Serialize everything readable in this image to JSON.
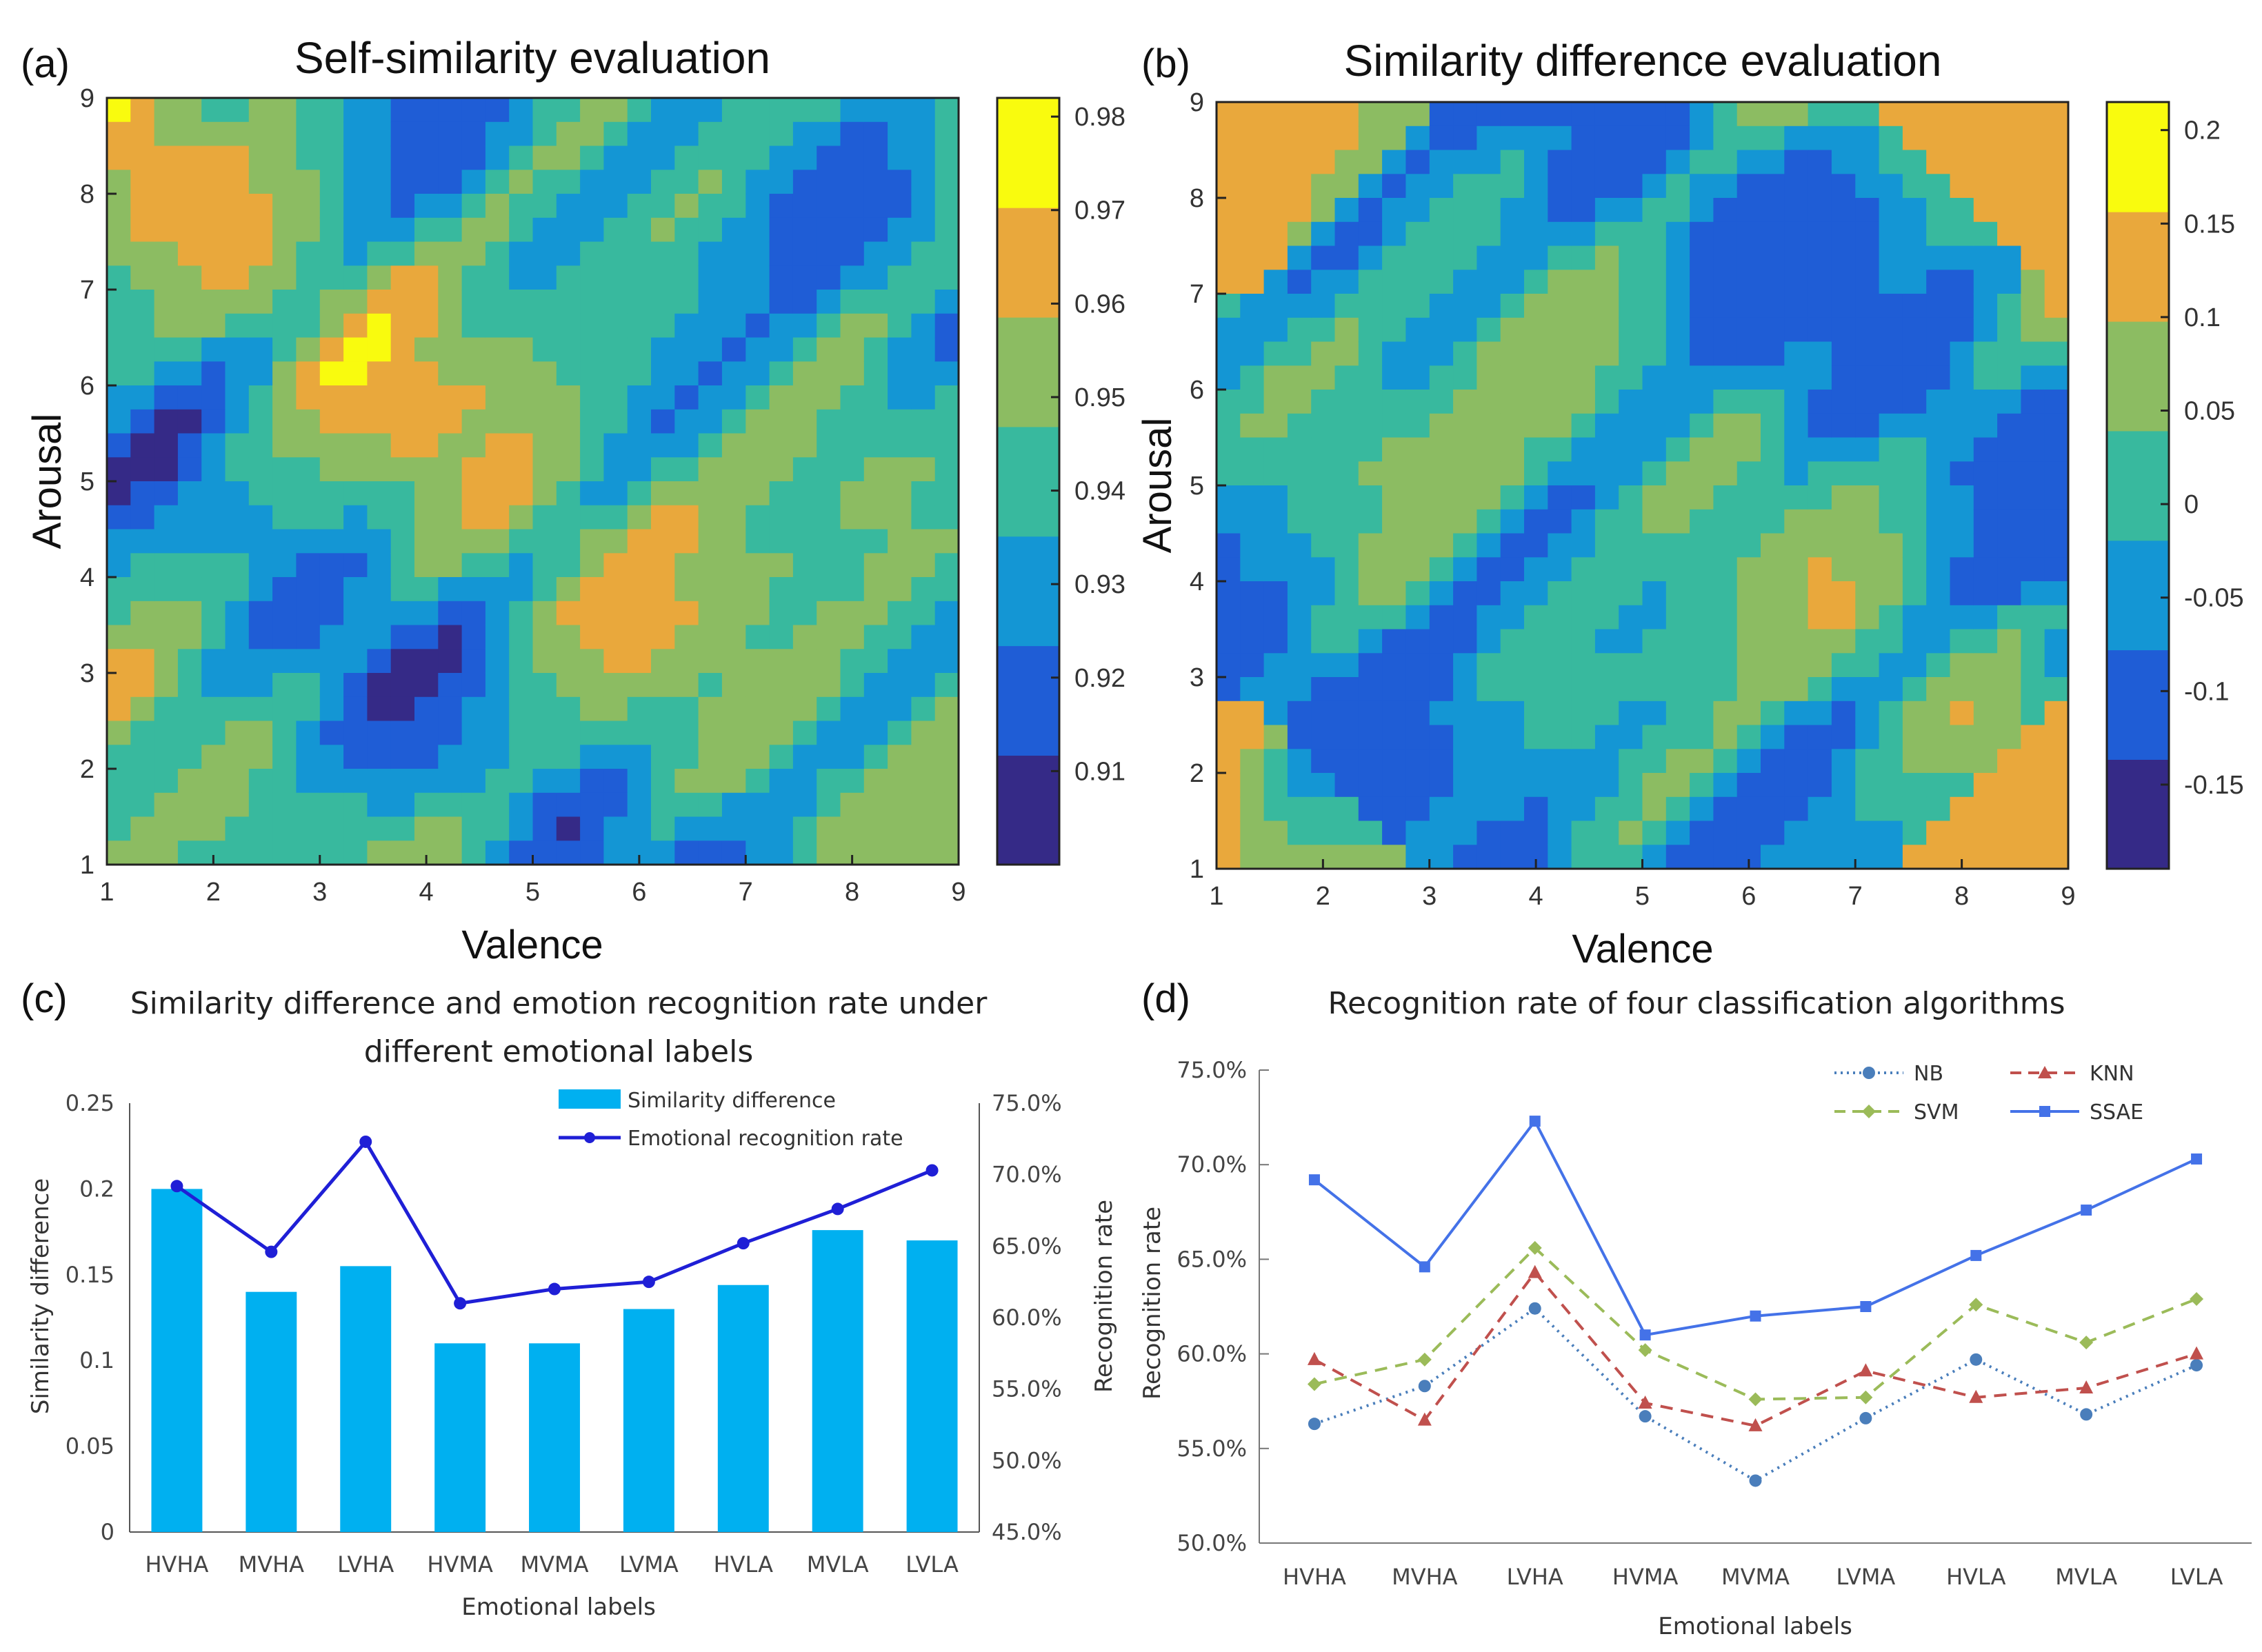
{
  "chart_data": [
    {
      "panel": "(a)",
      "type": "heatmap",
      "title": "Self-similarity evaluation",
      "xlabel": "Valence",
      "ylabel": "Arousal",
      "xlim": [
        1,
        9
      ],
      "ylim": [
        1,
        9
      ],
      "xticks": [
        "1",
        "2",
        "3",
        "4",
        "5",
        "6",
        "7",
        "8",
        "9"
      ],
      "yticks": [
        "1",
        "2",
        "3",
        "4",
        "5",
        "6",
        "7",
        "8",
        "9"
      ],
      "colorbar": {
        "range": [
          0.9,
          0.982
        ],
        "ticks": [
          "0.91",
          "0.92",
          "0.93",
          "0.94",
          "0.95",
          "0.96",
          "0.97",
          "0.98"
        ],
        "tick_values": [
          0.91,
          0.92,
          0.93,
          0.94,
          0.95,
          0.96,
          0.97,
          0.98
        ],
        "colors": [
          "#352a87",
          "#1f5dd6",
          "#1496d4",
          "#38b99e",
          "#8cbc62",
          "#e9a83c",
          "#f9fb0e"
        ]
      }
    },
    {
      "panel": "(b)",
      "type": "heatmap",
      "title": "Similarity difference evaluation",
      "xlabel": "Valence",
      "ylabel": "Arousal",
      "xlim": [
        1,
        9
      ],
      "ylim": [
        1,
        9
      ],
      "xticks": [
        "1",
        "2",
        "3",
        "4",
        "5",
        "6",
        "7",
        "8",
        "9"
      ],
      "yticks": [
        "1",
        "2",
        "3",
        "4",
        "5",
        "6",
        "7",
        "8",
        "9"
      ],
      "colorbar": {
        "range": [
          -0.195,
          0.215
        ],
        "ticks": [
          "0.2",
          "0.15",
          "0.1",
          "0.05",
          "0",
          "-0.05",
          "-0.1",
          "-0.15"
        ],
        "tick_values": [
          0.2,
          0.15,
          0.1,
          0.05,
          0,
          -0.05,
          -0.1,
          -0.15
        ],
        "colors": [
          "#352a87",
          "#1f5dd6",
          "#1496d4",
          "#38b99e",
          "#8cbc62",
          "#e9a83c",
          "#f9fb0e"
        ]
      }
    },
    {
      "panel": "(c)",
      "type": "bar",
      "title": "Similarity difference and emotion recognition rate under different emotional labels",
      "title_lines": [
        "Similarity difference and emotion recognition rate under",
        "different emotional labels"
      ],
      "xlabel": "Emotional labels",
      "ylabel": "Similarity difference",
      "y2label": "Recognition rate",
      "categories": [
        "HVHA",
        "MVHA",
        "LVHA",
        "HVMA",
        "MVMA",
        "LVMA",
        "HVLA",
        "MVLA",
        "LVLA"
      ],
      "ylim": [
        0,
        0.25
      ],
      "yticks": [
        "0",
        "0.05",
        "0.1",
        "0.15",
        "0.2",
        "0.25"
      ],
      "y2lim": [
        45,
        75
      ],
      "y2ticks": [
        "45.0%",
        "50.0%",
        "55.0%",
        "60.0%",
        "65.0%",
        "70.0%",
        "75.0%"
      ],
      "series": [
        {
          "name": "Similarity difference",
          "kind": "bar",
          "color": "#00b0f0",
          "values": [
            0.2,
            0.14,
            0.155,
            0.11,
            0.11,
            0.13,
            0.144,
            0.176,
            0.17
          ]
        },
        {
          "name": "Emotional recognition rate",
          "kind": "line",
          "axis": "right",
          "color": "#1f1fd6",
          "values": [
            69.2,
            64.6,
            72.3,
            61.0,
            62.0,
            62.5,
            65.2,
            67.6,
            70.3
          ]
        }
      ]
    },
    {
      "panel": "(d)",
      "type": "line",
      "title": "Recognition rate of four classification algorithms",
      "xlabel": "Emotional labels",
      "ylabel": "Recognition rate",
      "categories": [
        "HVHA",
        "MVHA",
        "LVHA",
        "HVMA",
        "MVMA",
        "LVMA",
        "HVLA",
        "MVLA",
        "LVLA"
      ],
      "ylim": [
        50,
        75
      ],
      "yticks": [
        "50.0%",
        "55.0%",
        "60.0%",
        "65.0%",
        "70.0%",
        "75.0%"
      ],
      "series": [
        {
          "name": "NB",
          "color": "#4a7ebb",
          "style": "dotted",
          "marker": "circle",
          "values": [
            56.3,
            58.3,
            62.4,
            56.7,
            53.3,
            56.6,
            59.7,
            56.8,
            59.4
          ]
        },
        {
          "name": "KNN",
          "color": "#c0504d",
          "style": "dashed",
          "marker": "triangle",
          "values": [
            59.7,
            56.5,
            64.3,
            57.4,
            56.2,
            59.1,
            57.7,
            58.2,
            60.0
          ]
        },
        {
          "name": "SVM",
          "color": "#9bbb59",
          "style": "dashed",
          "marker": "diamond",
          "values": [
            58.4,
            59.7,
            65.6,
            60.2,
            57.6,
            57.7,
            62.6,
            60.6,
            62.9
          ]
        },
        {
          "name": "SSAE",
          "color": "#4472e8",
          "style": "solid",
          "marker": "square",
          "values": [
            69.2,
            64.6,
            72.3,
            61.0,
            62.0,
            62.5,
            65.2,
            67.6,
            70.3
          ]
        }
      ]
    }
  ]
}
